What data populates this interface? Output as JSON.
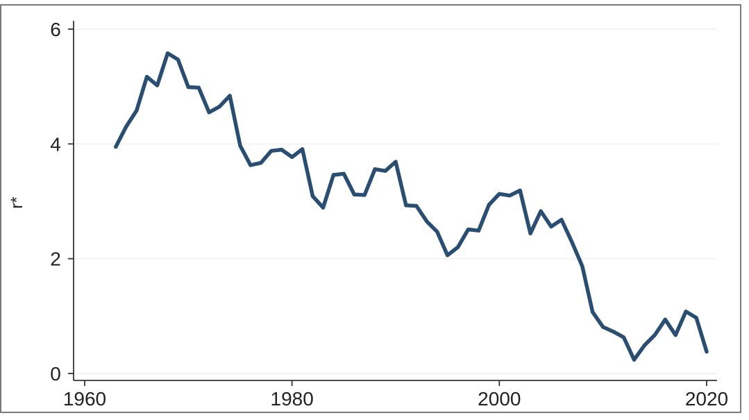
{
  "chart_data": {
    "type": "line",
    "title": "",
    "xlabel": "",
    "ylabel": "r*",
    "xlim": [
      1960,
      2020
    ],
    "ylim": [
      0,
      6
    ],
    "x_ticks": [
      "1960",
      "1980",
      "2000",
      "2020"
    ],
    "y_ticks": [
      "0",
      "2",
      "4",
      "6"
    ],
    "grid": "horizontal",
    "legend": "none",
    "series_color": "#2a4d72",
    "series": [
      {
        "x": [
          1963,
          1964,
          1965,
          1966,
          1967,
          1968,
          1969,
          1970,
          1971,
          1972,
          1973,
          1974,
          1975,
          1976,
          1977,
          1978,
          1979,
          1980,
          1981,
          1982,
          1983,
          1984,
          1985,
          1986,
          1987,
          1988,
          1989,
          1990,
          1991,
          1992,
          1993,
          1994,
          1995,
          1996,
          1997,
          1998,
          1999,
          2000,
          2001,
          2002,
          2003,
          2004,
          2005,
          2006,
          2007,
          2008,
          2009,
          2010,
          2011,
          2012,
          2013,
          2014,
          2015,
          2016,
          2017,
          2018,
          2019,
          2020
        ],
        "values": [
          3.95,
          4.3,
          4.58,
          5.17,
          5.02,
          5.58,
          5.47,
          4.99,
          4.98,
          4.55,
          4.65,
          4.84,
          3.97,
          3.63,
          3.67,
          3.88,
          3.9,
          3.77,
          3.91,
          3.09,
          2.89,
          3.46,
          3.48,
          3.12,
          3.11,
          3.56,
          3.53,
          3.69,
          2.93,
          2.92,
          2.65,
          2.47,
          2.06,
          2.2,
          2.51,
          2.49,
          2.94,
          3.13,
          3.1,
          3.19,
          2.44,
          2.83,
          2.56,
          2.68,
          2.29,
          1.87,
          1.07,
          0.81,
          0.73,
          0.63,
          0.24,
          0.49,
          0.67,
          0.94,
          0.67,
          1.08,
          0.97,
          0.38
        ]
      }
    ]
  }
}
